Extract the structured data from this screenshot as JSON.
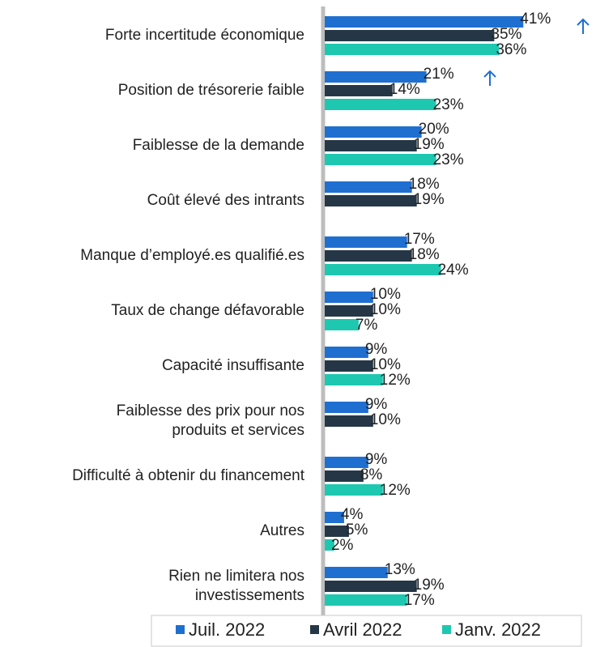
{
  "chart_data": {
    "type": "hbar",
    "categories": [
      "Forte incertitude économique",
      "Position de trésorerie faible",
      "Faiblesse de la demande",
      "Coût élevé des intrants",
      "Manque d’employé.es qualifié.es",
      "Taux de change défavorable",
      "Capacité insuffisante",
      "Faiblesse des prix pour nos\nproduits et services",
      "Difficulté à obtenir du financement",
      "Autres",
      "Rien ne limitera nos\ninvestissements"
    ],
    "series": [
      {
        "name": "Juil. 2022",
        "color": "#1f6fd1",
        "values": [
          41,
          21,
          20,
          18,
          17,
          10,
          9,
          9,
          9,
          4,
          13
        ],
        "value_labels": [
          "41%",
          "21%",
          "20%",
          "18%",
          "17%",
          "10%",
          "9%",
          "9%",
          "9%",
          "4%",
          "13%"
        ]
      },
      {
        "name": "Avril 2022",
        "color": "#253746",
        "values": [
          35,
          14,
          19,
          19,
          18,
          10,
          10,
          10,
          8,
          5,
          19
        ],
        "value_labels": [
          "35%",
          "14%",
          "19%",
          "19%",
          "18%",
          "10%",
          "10%",
          "10%",
          "8%",
          "5%",
          "19%"
        ]
      },
      {
        "name": "Janv. 2022",
        "color": "#1ec8b0",
        "values": [
          36,
          23,
          23,
          null,
          24,
          7,
          12,
          null,
          12,
          2,
          17
        ],
        "value_labels": [
          "36%",
          "23%",
          "23%",
          null,
          "24%",
          "7%",
          "12%",
          null,
          "12%",
          "2%",
          "17%"
        ]
      }
    ],
    "xlim": [
      0,
      56
    ],
    "legend": "bottom"
  }
}
